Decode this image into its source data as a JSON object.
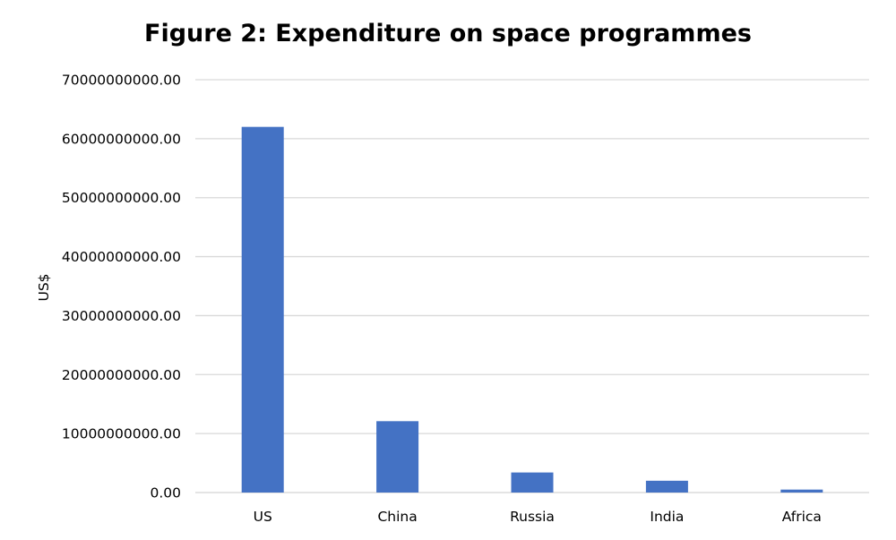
{
  "chart_data": {
    "type": "bar",
    "title": "Figure 2: Expenditure on space programmes",
    "ylabel": "US$",
    "xlabel": "",
    "categories": [
      "US",
      "China",
      "Russia",
      "India",
      "Africa"
    ],
    "values": [
      62000000000,
      12100000000,
      3400000000,
      2000000000,
      500000000
    ],
    "ylim": [
      0,
      70000000000
    ],
    "yticks": [
      0,
      10000000000,
      20000000000,
      30000000000,
      40000000000,
      50000000000,
      60000000000,
      70000000000
    ],
    "ytick_labels": [
      "0.00",
      "10000000000.00",
      "20000000000.00",
      "30000000000.00",
      "40000000000.00",
      "50000000000.00",
      "60000000000.00",
      "70000000000.00"
    ],
    "grid": true,
    "legend": "none",
    "bar_color": "#4472c4",
    "grid_color": "#d9d9d9"
  }
}
